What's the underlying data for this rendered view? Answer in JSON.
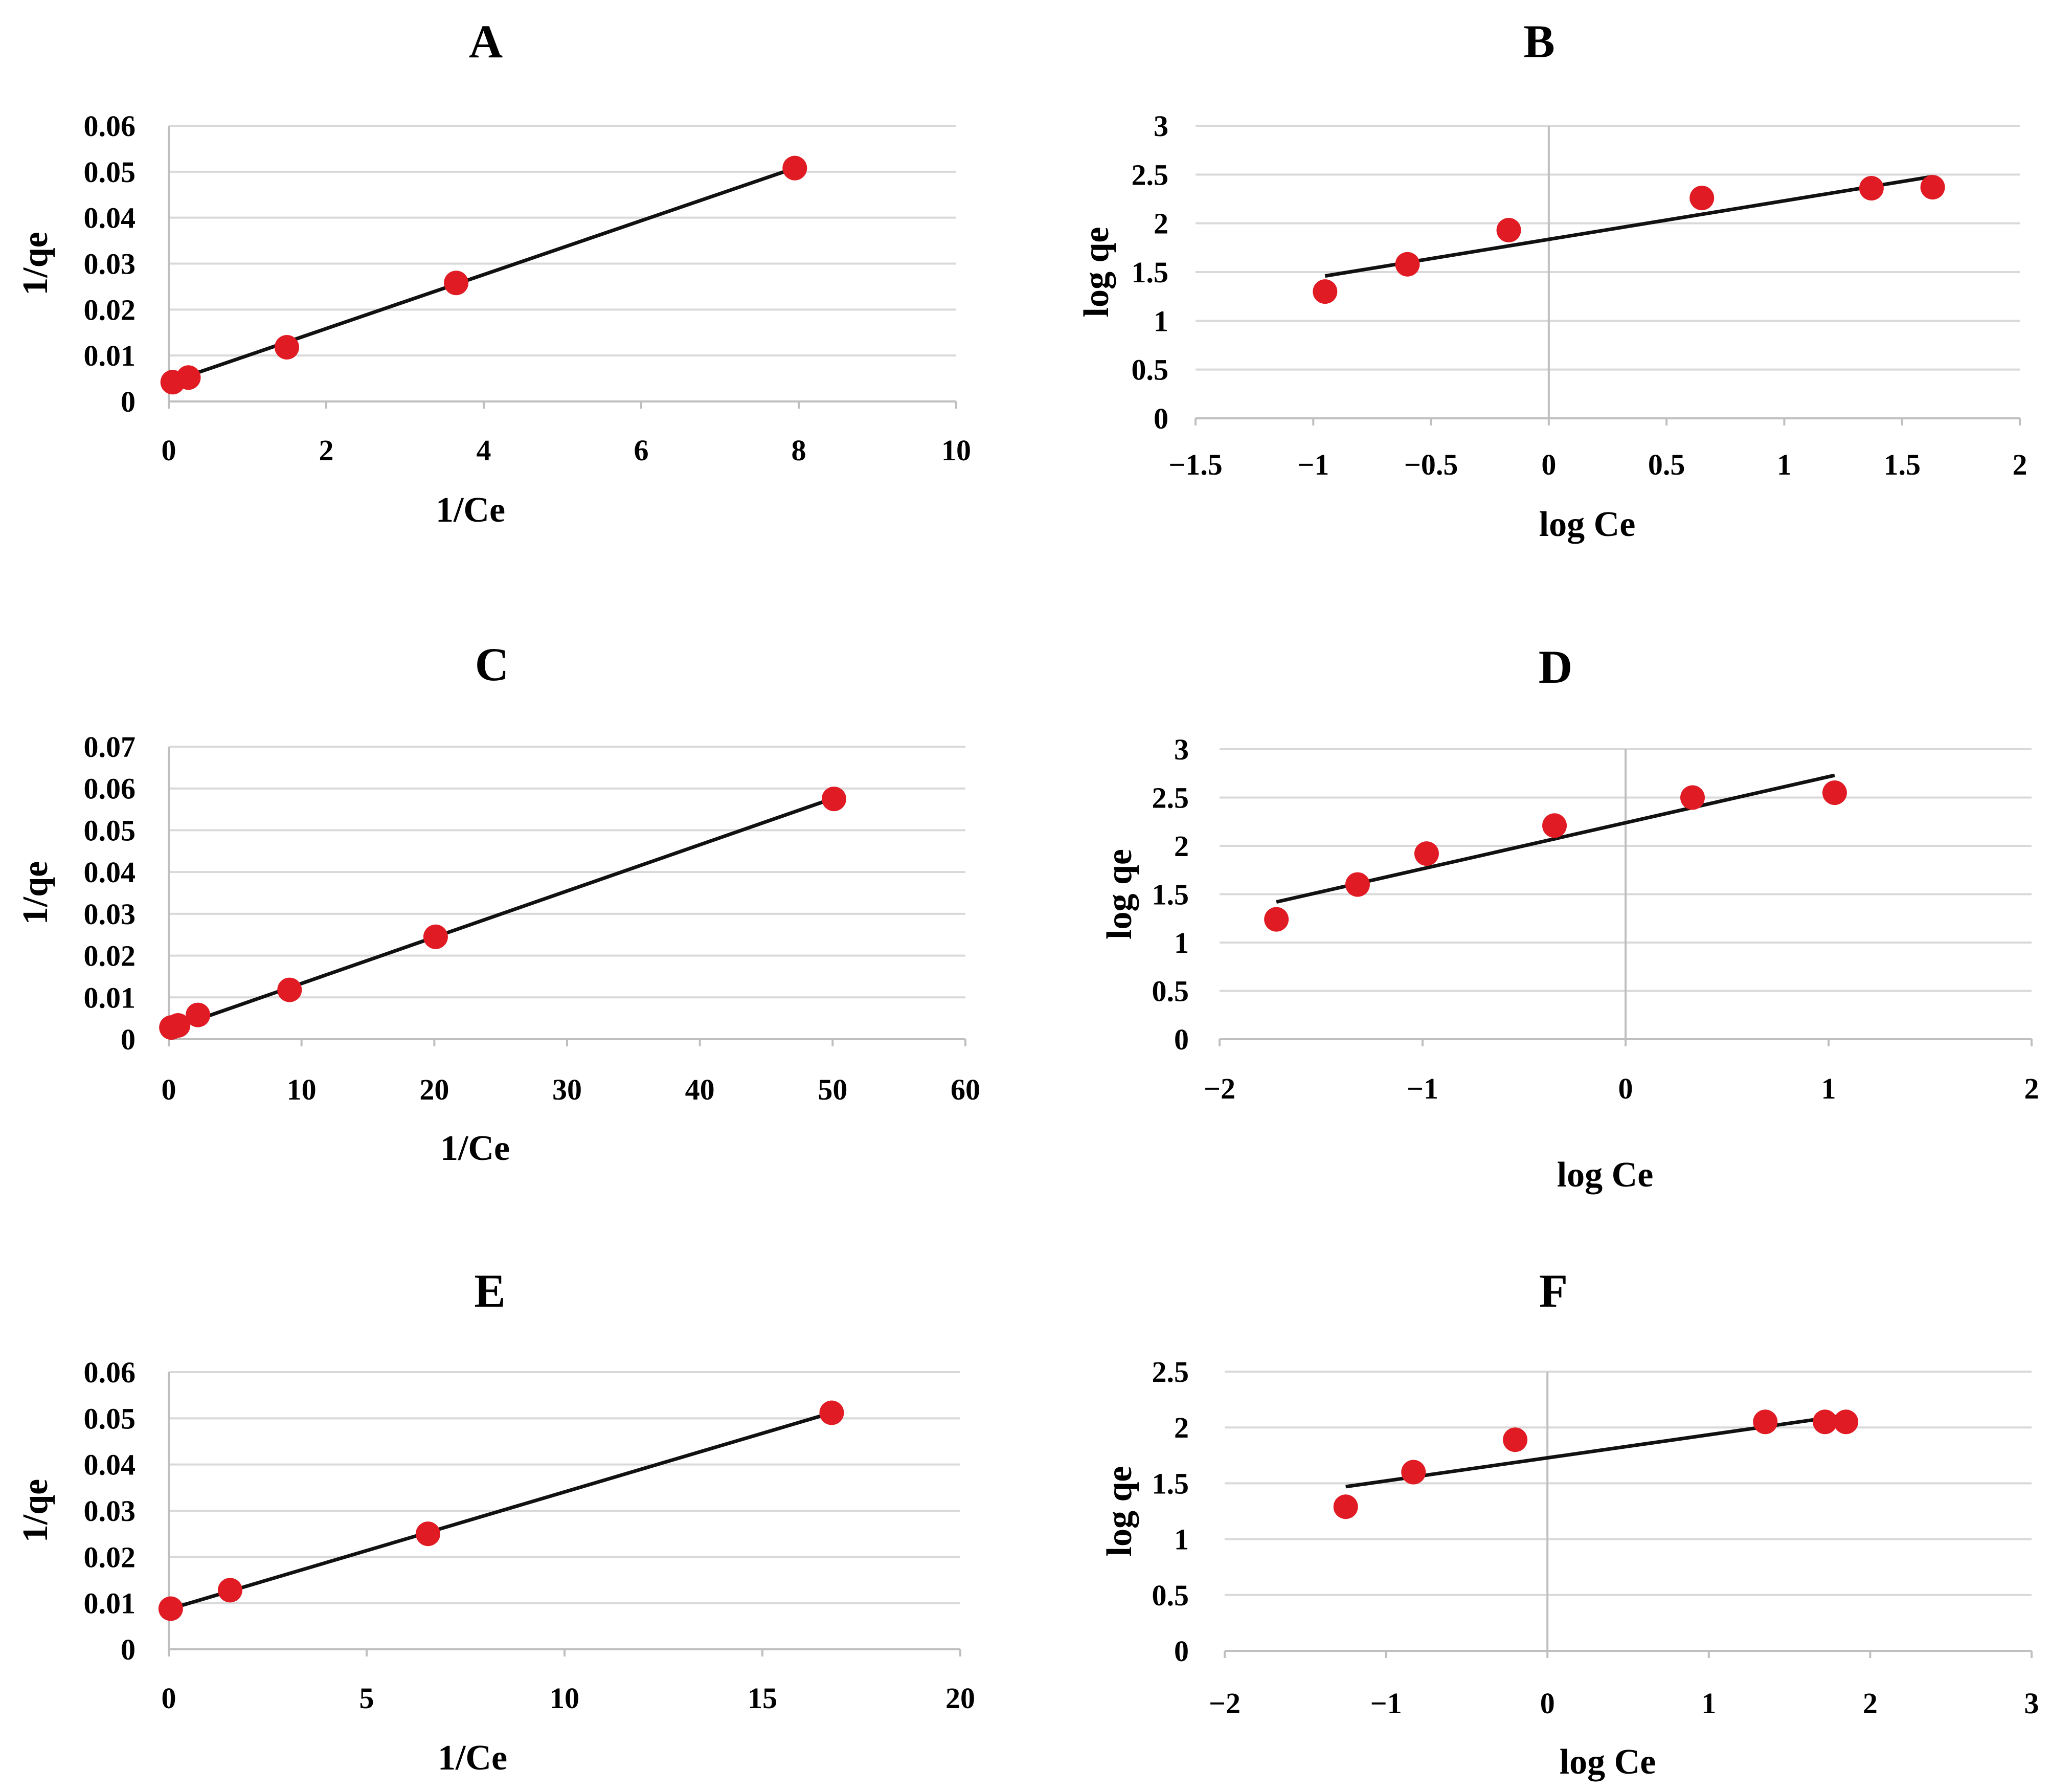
{
  "colors": {
    "point": "#e01b24",
    "line": "#111111",
    "grid": "#d9d9d9"
  },
  "chart_data": [
    {
      "type": "scatter",
      "title": "A",
      "xlabel": "1/Ce",
      "ylabel": "1/qe",
      "xlim": [
        0,
        10
      ],
      "ylim": [
        0,
        0.06
      ],
      "xticks": [
        0,
        2,
        4,
        6,
        8,
        10
      ],
      "xtick_labels": [
        "0",
        "2",
        "4",
        "6",
        "8",
        "10"
      ],
      "yticks": [
        0,
        0.01,
        0.02,
        0.03,
        0.04,
        0.05,
        0.06
      ],
      "ytick_labels": [
        "0",
        "0.01",
        "0.02",
        "0.03",
        "0.04",
        "0.05",
        "0.06"
      ],
      "x": [
        0.05,
        0.25,
        1.5,
        3.65,
        7.95
      ],
      "y": [
        0.0042,
        0.0052,
        0.0118,
        0.0258,
        0.0508
      ],
      "fit": [
        [
          0.03,
          0.0043
        ],
        [
          7.95,
          0.0508
        ]
      ]
    },
    {
      "type": "scatter",
      "title": "B",
      "xlabel": "log Ce",
      "ylabel": "log qe",
      "xlim": [
        -1.5,
        2
      ],
      "ylim": [
        0,
        3
      ],
      "xticks": [
        -1.5,
        -1,
        -0.5,
        0,
        0.5,
        1,
        1.5,
        2
      ],
      "xtick_labels": [
        "−1.5",
        "−1",
        "−0.5",
        "0",
        "0.5",
        "1",
        "1.5",
        "2"
      ],
      "yticks": [
        0,
        0.5,
        1,
        1.5,
        2,
        2.5,
        3
      ],
      "ytick_labels": [
        "0",
        "0.5",
        "1",
        "1.5",
        "2",
        "2.5",
        "3"
      ],
      "x": [
        -0.95,
        -0.6,
        -0.17,
        0.65,
        1.37,
        1.63
      ],
      "y": [
        1.3,
        1.58,
        1.93,
        2.26,
        2.36,
        2.37
      ],
      "fit": [
        [
          -0.95,
          1.46
        ],
        [
          1.63,
          2.48
        ]
      ]
    },
    {
      "type": "scatter",
      "title": "C",
      "xlabel": "1/Ce",
      "ylabel": "1/qe",
      "xlim": [
        0,
        60
      ],
      "ylim": [
        0,
        0.07
      ],
      "xticks": [
        0,
        10,
        20,
        30,
        40,
        50,
        60
      ],
      "xtick_labels": [
        "0",
        "10",
        "20",
        "30",
        "40",
        "50",
        "60"
      ],
      "yticks": [
        0,
        0.01,
        0.02,
        0.03,
        0.04,
        0.05,
        0.06,
        0.07
      ],
      "ytick_labels": [
        "0",
        "0.01",
        "0.02",
        "0.03",
        "0.04",
        "0.05",
        "0.06",
        "0.07"
      ],
      "x": [
        0.2,
        0.7,
        2.2,
        9.1,
        20.1,
        50.1
      ],
      "y": [
        0.0028,
        0.0033,
        0.0058,
        0.0118,
        0.0245,
        0.0575
      ],
      "fit": [
        [
          0.2,
          0.0025
        ],
        [
          50.1,
          0.0577
        ]
      ]
    },
    {
      "type": "scatter",
      "title": "D",
      "xlabel": "log Ce",
      "ylabel": "log qe",
      "xlim": [
        -2,
        2
      ],
      "ylim": [
        0,
        3
      ],
      "xticks": [
        -2,
        -1,
        0,
        1,
        2
      ],
      "xtick_labels": [
        "−2",
        "−1",
        "0",
        "1",
        "2"
      ],
      "yticks": [
        0,
        0.5,
        1,
        1.5,
        2,
        2.5,
        3
      ],
      "ytick_labels": [
        "0",
        "0.5",
        "1",
        "1.5",
        "2",
        "2.5",
        "3"
      ],
      "x": [
        -1.72,
        -1.32,
        -0.98,
        -0.35,
        0.33,
        1.03
      ],
      "y": [
        1.24,
        1.6,
        1.92,
        2.21,
        2.5,
        2.55
      ],
      "fit": [
        [
          -1.72,
          1.42
        ],
        [
          1.03,
          2.73
        ]
      ]
    },
    {
      "type": "scatter",
      "title": "E",
      "xlabel": "1/Ce",
      "ylabel": "1/qe",
      "xlim": [
        0,
        20
      ],
      "ylim": [
        0,
        0.06
      ],
      "xticks": [
        0,
        5,
        10,
        15,
        20
      ],
      "xtick_labels": [
        "0",
        "5",
        "10",
        "15",
        "20"
      ],
      "yticks": [
        0,
        0.01,
        0.02,
        0.03,
        0.04,
        0.05,
        0.06
      ],
      "ytick_labels": [
        "0",
        "0.01",
        "0.02",
        "0.03",
        "0.04",
        "0.05",
        "0.06"
      ],
      "x": [
        0.05,
        1.55,
        6.55,
        16.75
      ],
      "y": [
        0.0088,
        0.0128,
        0.025,
        0.0512
      ],
      "fit": [
        [
          0.05,
          0.0088
        ],
        [
          16.75,
          0.0512
        ]
      ]
    },
    {
      "type": "scatter",
      "title": "F",
      "xlabel": "log Ce",
      "ylabel": "log qe",
      "xlim": [
        -2,
        3
      ],
      "ylim": [
        0,
        2.5
      ],
      "xticks": [
        -2,
        -1,
        0,
        1,
        2,
        3
      ],
      "xtick_labels": [
        "−2",
        "−1",
        "0",
        "1",
        "2",
        "3"
      ],
      "yticks": [
        0,
        0.5,
        1,
        1.5,
        2,
        2.5
      ],
      "ytick_labels": [
        "0",
        "0.5",
        "1",
        "1.5",
        "2",
        "2.5"
      ],
      "x": [
        -1.25,
        -0.83,
        -0.2,
        1.35,
        1.72,
        1.85
      ],
      "y": [
        1.29,
        1.6,
        1.89,
        2.05,
        2.05,
        2.05
      ],
      "fit": [
        [
          -1.25,
          1.47
        ],
        [
          1.85,
          2.11
        ]
      ]
    }
  ]
}
